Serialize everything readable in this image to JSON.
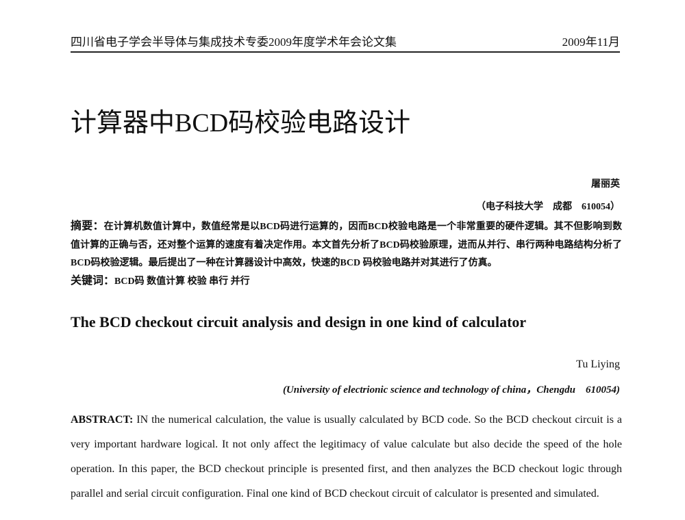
{
  "header": {
    "journal": "四川省电子学会半导体与集成技术专委2009年度学术年会论文集",
    "date": "2009年11月"
  },
  "title_cn": "计算器中BCD码校验电路设计",
  "author_cn": "屠丽英",
  "affiliation_cn": "（电子科技大学　成都　610054）",
  "abstract_cn": {
    "label": "摘要：",
    "text": "在计算机数值计算中，数值经常是以BCD码进行运算的，因而BCD校验电路是一个非常重要的硬件逻辑。其不但影响到数值计算的正确与否，还对整个运算的速度有着决定作用。本文首先分析了BCD码校验原理，进而从并行、串行两种电路结构分析了BCD码校验逻辑。最后提出了一种在计算器设计中高效，快速的BCD 码校验电路并对其进行了仿真。"
  },
  "keywords_cn": {
    "label": "关键词：",
    "text": "BCD码 数值计算 校验 串行 并行"
  },
  "title_en": "The BCD checkout circuit analysis and design in one kind of calculator",
  "author_en": "Tu Liying",
  "affiliation_en": "(University of electrionic science and technology of china，Chengdu　610054)",
  "abstract_en": {
    "label": "ABSTRACT:",
    "text": " IN the numerical calculation, the value is usually calculated by BCD code. So the BCD checkout circuit is a very important hardware logical. It not only affect the legitimacy of value calculate but also decide the speed of the hole operation. In this paper, the BCD checkout principle is presented first, and then analyzes the BCD checkout logic through parallel and serial circuit configuration. Final one kind of BCD checkout circuit of calculator is presented and simulated."
  }
}
